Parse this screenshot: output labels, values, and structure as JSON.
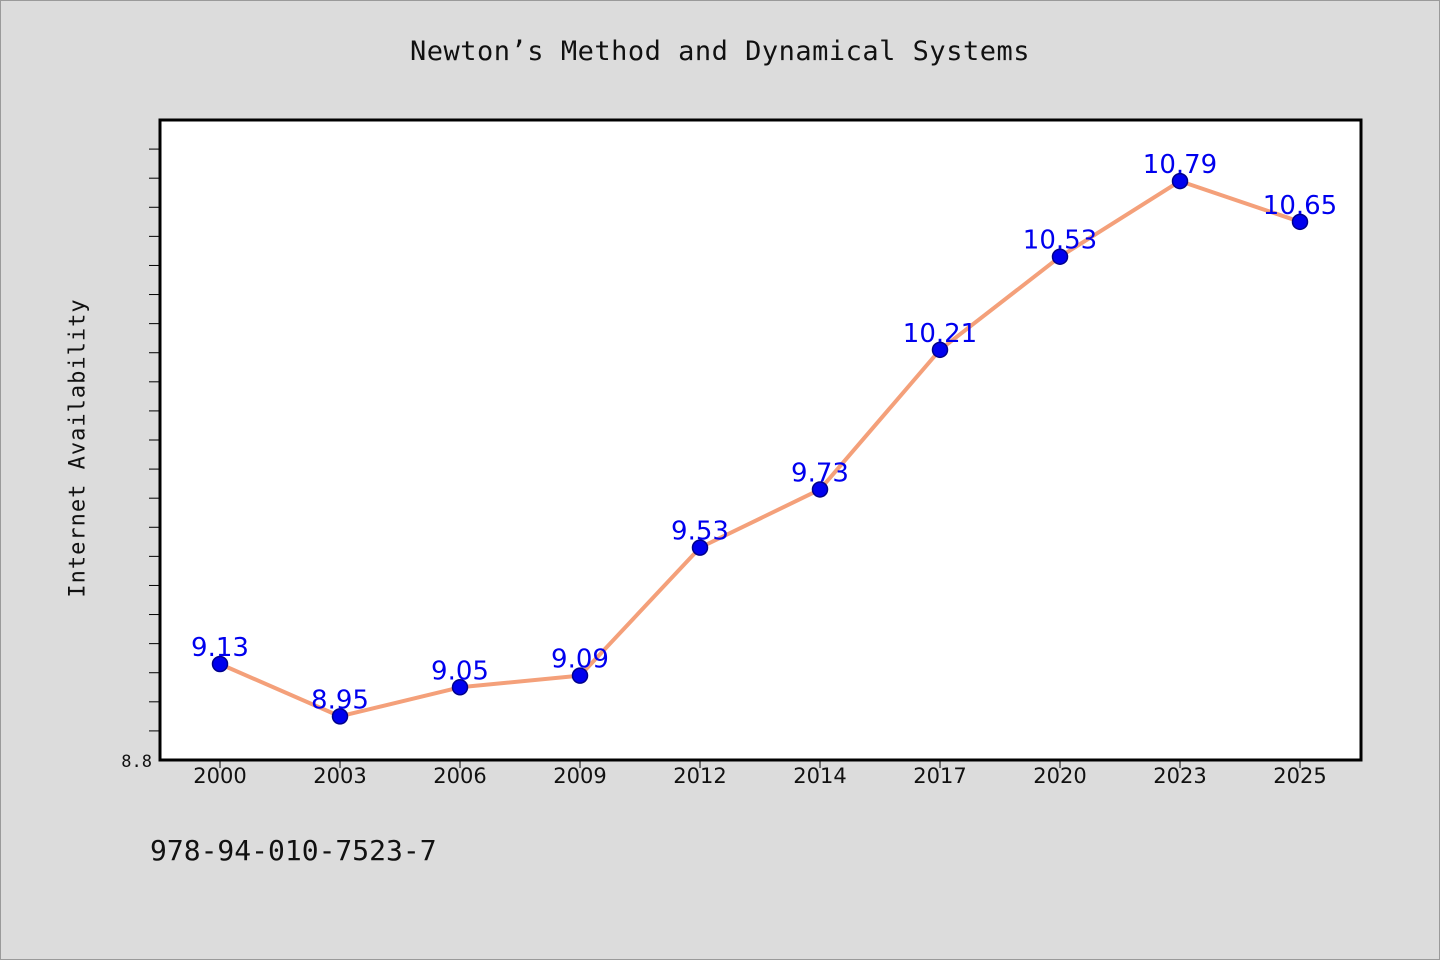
{
  "chart_data": {
    "type": "line",
    "title": "Newton’s Method and Dynamical Systems",
    "xlabel": "",
    "ylabel": "Internet Availability",
    "categories": [
      "2000",
      "2003",
      "2006",
      "2009",
      "2012",
      "2014",
      "2017",
      "2020",
      "2023",
      "2025"
    ],
    "series": [
      {
        "values": [
          9.13,
          8.95,
          9.05,
          9.09,
          9.53,
          9.73,
          10.21,
          10.53,
          10.79,
          10.65
        ]
      }
    ],
    "data_labels": [
      "9.13",
      "8.95",
      "9.05",
      "9.09",
      "9.53",
      "9.73",
      "10.21",
      "10.53",
      "10.79",
      "10.65"
    ],
    "ylim": [
      8.8,
      11.0
    ],
    "y_tick_labels": [
      "8.8"
    ],
    "grid": false,
    "colors": {
      "line": "#f4a07a",
      "marker_fill": "#0000ee",
      "marker_edge": "#00008b",
      "data_label": "#0000ee",
      "plot_background": "#ffffff",
      "figure_background": "#dcdcdc"
    }
  },
  "footer": {
    "code": "978-94-010-7523-7"
  }
}
